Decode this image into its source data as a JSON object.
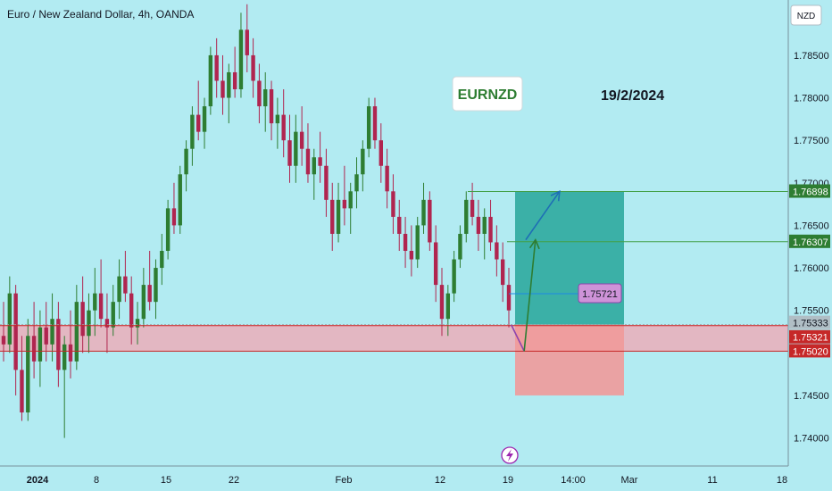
{
  "header": {
    "title": "Euro / New Zealand Dollar, 4h, OANDA"
  },
  "currency_label": "NZD",
  "annotations": {
    "symbol": "EURNZD",
    "date": "19/2/2024",
    "mid_price": "1.75721"
  },
  "colors": {
    "up": "#2e7d32",
    "down": "#b0254f",
    "background": "#b2ebf2",
    "support_zone": "#f3a6b1",
    "target_zone": "#26a69a",
    "stop_zone": "#ef9a9a",
    "resistance_line": "#43a047",
    "support_line": "#c62828",
    "path_up": "#1e6fb5",
    "path_down": "#8e44ad"
  },
  "chart_data": {
    "type": "candlestick",
    "title": "Euro / New Zealand Dollar, 4h, OANDA",
    "ylim": [
      1.7367,
      1.7915
    ],
    "y_ticks": [
      "1.78500",
      "1.78000",
      "1.77500",
      "1.77000",
      "1.76500",
      "1.76000",
      "1.75500",
      "1.74500",
      "1.74000"
    ],
    "x_ticks": [
      "2024",
      "8",
      "15",
      "22",
      "Feb",
      "12",
      "19",
      "14:00",
      "Mar",
      "11",
      "18"
    ],
    "price_levels": [
      {
        "label": "1.76898",
        "value": 1.76898,
        "kind": "resistance"
      },
      {
        "label": "1.76307",
        "value": 1.76307,
        "kind": "resistance"
      },
      {
        "label": "1.75333",
        "value": 1.75333,
        "kind": "current"
      },
      {
        "label": "1.75321",
        "value": 1.75321,
        "kind": "support"
      },
      {
        "label": "1.75020",
        "value": 1.7502,
        "kind": "support"
      }
    ],
    "support_zone": [
      1.7502,
      1.7533
    ],
    "position": {
      "target": 1.76898,
      "entry": 1.75333,
      "stop": 1.745
    },
    "path_points": [
      {
        "date": "2024-02-19 00:00",
        "price": 1.7533
      },
      {
        "date": "2024-02-20 08:00",
        "price": 1.7502
      },
      {
        "date": "2024-02-21 12:00",
        "price": 1.7633
      },
      {
        "date": "2024-02-20 12:00",
        "price": 1.7633
      },
      {
        "date": "2024-02-24 00:00",
        "price": 1.769
      }
    ],
    "ohlc": [
      [
        1.752,
        1.756,
        1.749,
        1.751
      ],
      [
        1.751,
        1.759,
        1.75,
        1.757
      ],
      [
        1.757,
        1.758,
        1.745,
        1.748
      ],
      [
        1.748,
        1.752,
        1.742,
        1.743
      ],
      [
        1.743,
        1.754,
        1.742,
        1.752
      ],
      [
        1.752,
        1.756,
        1.747,
        1.749
      ],
      [
        1.749,
        1.755,
        1.746,
        1.753
      ],
      [
        1.753,
        1.756,
        1.749,
        1.751
      ],
      [
        1.751,
        1.757,
        1.749,
        1.754
      ],
      [
        1.754,
        1.756,
        1.746,
        1.748
      ],
      [
        1.748,
        1.752,
        1.74,
        1.751
      ],
      [
        1.751,
        1.755,
        1.747,
        1.749
      ],
      [
        1.749,
        1.758,
        1.748,
        1.756
      ],
      [
        1.756,
        1.759,
        1.75,
        1.752
      ],
      [
        1.752,
        1.757,
        1.75,
        1.755
      ],
      [
        1.755,
        1.76,
        1.752,
        1.757
      ],
      [
        1.757,
        1.761,
        1.753,
        1.754
      ],
      [
        1.754,
        1.757,
        1.75,
        1.753
      ],
      [
        1.753,
        1.758,
        1.752,
        1.756
      ],
      [
        1.756,
        1.761,
        1.754,
        1.759
      ],
      [
        1.759,
        1.762,
        1.756,
        1.757
      ],
      [
        1.757,
        1.759,
        1.751,
        1.753
      ],
      [
        1.753,
        1.756,
        1.751,
        1.754
      ],
      [
        1.754,
        1.76,
        1.753,
        1.758
      ],
      [
        1.758,
        1.762,
        1.755,
        1.756
      ],
      [
        1.756,
        1.761,
        1.754,
        1.76
      ],
      [
        1.76,
        1.764,
        1.758,
        1.762
      ],
      [
        1.762,
        1.768,
        1.761,
        1.767
      ],
      [
        1.767,
        1.77,
        1.764,
        1.765
      ],
      [
        1.765,
        1.772,
        1.764,
        1.771
      ],
      [
        1.771,
        1.775,
        1.769,
        1.774
      ],
      [
        1.774,
        1.779,
        1.772,
        1.778
      ],
      [
        1.778,
        1.782,
        1.775,
        1.776
      ],
      [
        1.776,
        1.78,
        1.774,
        1.779
      ],
      [
        1.779,
        1.786,
        1.778,
        1.785
      ],
      [
        1.785,
        1.787,
        1.78,
        1.782
      ],
      [
        1.782,
        1.785,
        1.778,
        1.78
      ],
      [
        1.78,
        1.784,
        1.777,
        1.783
      ],
      [
        1.783,
        1.786,
        1.78,
        1.781
      ],
      [
        1.781,
        1.79,
        1.78,
        1.788
      ],
      [
        1.788,
        1.791,
        1.783,
        1.785
      ],
      [
        1.785,
        1.787,
        1.78,
        1.782
      ],
      [
        1.782,
        1.784,
        1.777,
        1.779
      ],
      [
        1.779,
        1.783,
        1.776,
        1.781
      ],
      [
        1.781,
        1.782,
        1.775,
        1.777
      ],
      [
        1.777,
        1.78,
        1.774,
        1.778
      ],
      [
        1.778,
        1.781,
        1.773,
        1.775
      ],
      [
        1.775,
        1.778,
        1.77,
        1.772
      ],
      [
        1.772,
        1.778,
        1.77,
        1.776
      ],
      [
        1.776,
        1.779,
        1.772,
        1.774
      ],
      [
        1.774,
        1.777,
        1.77,
        1.771
      ],
      [
        1.771,
        1.774,
        1.768,
        1.773
      ],
      [
        1.773,
        1.776,
        1.77,
        1.772
      ],
      [
        1.772,
        1.774,
        1.766,
        1.768
      ],
      [
        1.768,
        1.77,
        1.762,
        1.764
      ],
      [
        1.764,
        1.77,
        1.763,
        1.768
      ],
      [
        1.768,
        1.772,
        1.765,
        1.767
      ],
      [
        1.767,
        1.77,
        1.764,
        1.769
      ],
      [
        1.769,
        1.773,
        1.767,
        1.771
      ],
      [
        1.771,
        1.775,
        1.769,
        1.774
      ],
      [
        1.774,
        1.78,
        1.773,
        1.779
      ],
      [
        1.779,
        1.78,
        1.774,
        1.775
      ],
      [
        1.775,
        1.777,
        1.77,
        1.772
      ],
      [
        1.772,
        1.774,
        1.767,
        1.769
      ],
      [
        1.769,
        1.771,
        1.764,
        1.766
      ],
      [
        1.766,
        1.768,
        1.762,
        1.764
      ],
      [
        1.764,
        1.766,
        1.76,
        1.762
      ],
      [
        1.762,
        1.765,
        1.759,
        1.761
      ],
      [
        1.761,
        1.766,
        1.76,
        1.765
      ],
      [
        1.765,
        1.77,
        1.764,
        1.768
      ],
      [
        1.768,
        1.769,
        1.762,
        1.763
      ],
      [
        1.763,
        1.765,
        1.756,
        1.758
      ],
      [
        1.758,
        1.76,
        1.752,
        1.754
      ],
      [
        1.754,
        1.758,
        1.752,
        1.757
      ],
      [
        1.757,
        1.762,
        1.756,
        1.761
      ],
      [
        1.761,
        1.765,
        1.76,
        1.764
      ],
      [
        1.764,
        1.769,
        1.763,
        1.768
      ],
      [
        1.768,
        1.77,
        1.765,
        1.766
      ],
      [
        1.766,
        1.768,
        1.762,
        1.764
      ],
      [
        1.764,
        1.767,
        1.761,
        1.766
      ],
      [
        1.766,
        1.768,
        1.762,
        1.763
      ],
      [
        1.763,
        1.765,
        1.759,
        1.761
      ],
      [
        1.761,
        1.763,
        1.756,
        1.758
      ],
      [
        1.758,
        1.76,
        1.753,
        1.755
      ]
    ]
  }
}
